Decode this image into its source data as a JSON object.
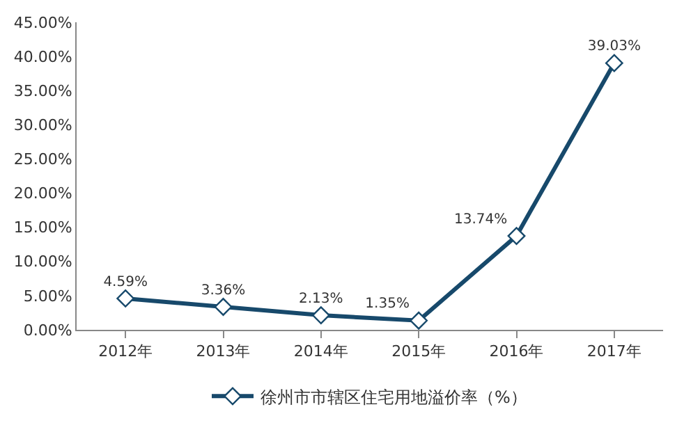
{
  "chart_data": {
    "type": "line",
    "categories": [
      "2012年",
      "2013年",
      "2014年",
      "2015年",
      "2016年",
      "2017年"
    ],
    "series": [
      {
        "name": "徐州市市辖区住宅用地溢价率（%）",
        "color": "#17496b",
        "values": [
          4.59,
          3.36,
          2.13,
          1.35,
          13.74,
          39.03
        ],
        "value_labels": [
          "4.59%",
          "3.36%",
          "2.13%",
          "1.35%",
          "13.74%",
          "39.03%"
        ]
      }
    ],
    "ylim": [
      0,
      45
    ],
    "yticks": [
      {
        "value": 0,
        "label": "0.00%"
      },
      {
        "value": 5,
        "label": "5.00%"
      },
      {
        "value": 10,
        "label": "10.00%"
      },
      {
        "value": 15,
        "label": "15.00%"
      },
      {
        "value": 20,
        "label": "20.00%"
      },
      {
        "value": 25,
        "label": "25.00%"
      },
      {
        "value": 30,
        "label": "30.00%"
      },
      {
        "value": 35,
        "label": "35.00%"
      },
      {
        "value": 40,
        "label": "40.00%"
      },
      {
        "value": 45,
        "label": "45.00%"
      }
    ],
    "legend": "bottom",
    "marker": "diamond",
    "line_style": "solid"
  }
}
